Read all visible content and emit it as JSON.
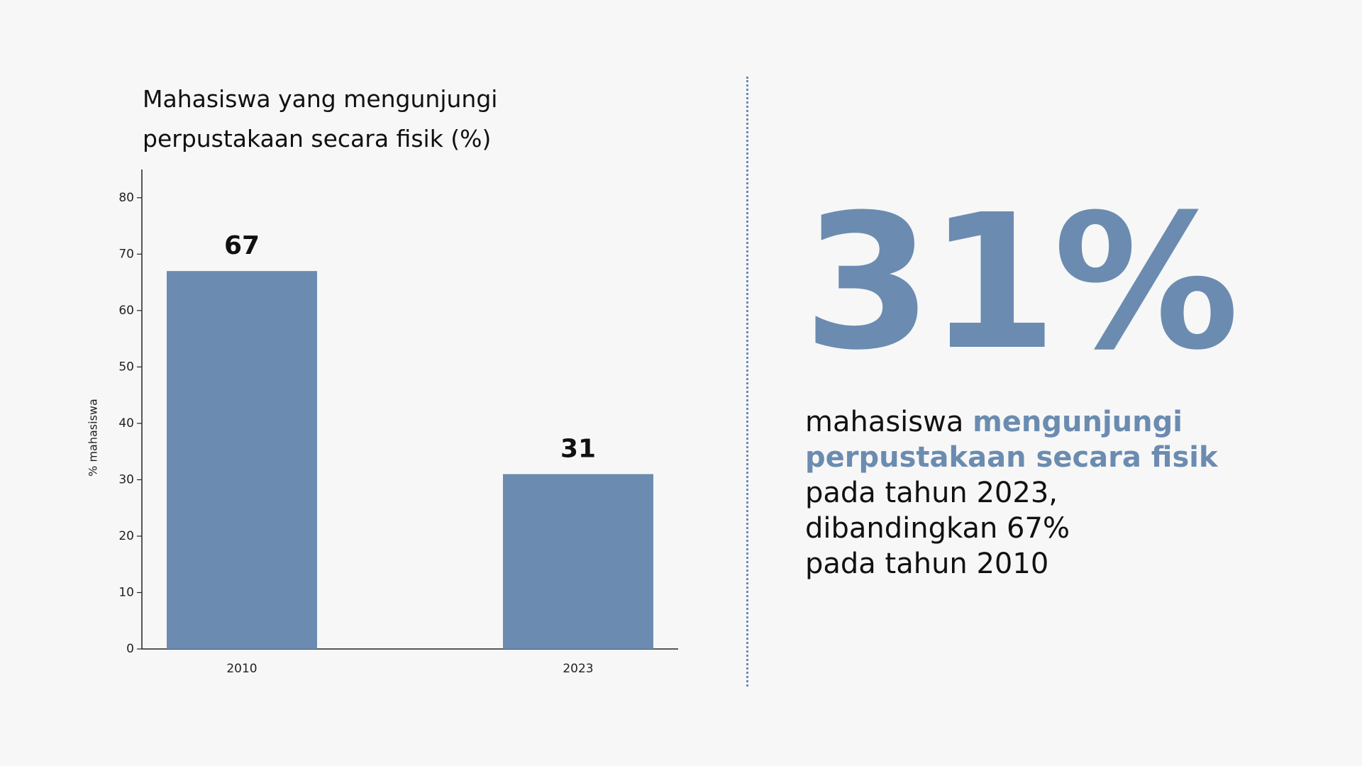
{
  "chart_data": {
    "type": "bar",
    "title": "Mahasiswa yang mengunjungi perpustakaan secara fisik (%)",
    "ylabel": "% mahasiswa",
    "categories": [
      "2010",
      "2023"
    ],
    "values": [
      67,
      31
    ],
    "color": "#6b8cb0",
    "ylim": [
      0,
      85
    ],
    "yticks": [
      0,
      10,
      20,
      30,
      40,
      50,
      60,
      70,
      80
    ],
    "grid": false
  },
  "highlight": {
    "headline": "31%",
    "text_lead": "mahasiswa",
    "text_emphasis": "mengunjungi perpustakaan secara fisik",
    "lines": [
      "pada tahun 2023,",
      "dibandingkan 67%",
      "pada tahun 2010"
    ]
  }
}
